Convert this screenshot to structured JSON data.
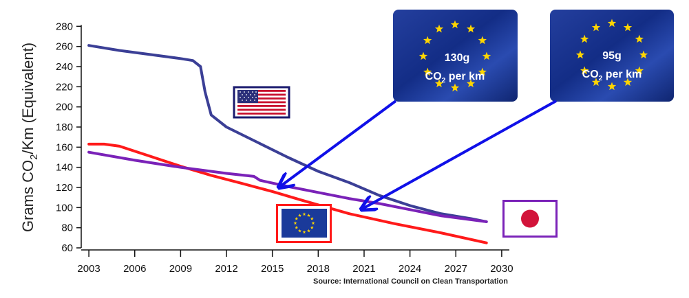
{
  "chart_data": {
    "type": "line",
    "ylabel_main": "Grams CO",
    "ylabel_sub": "2",
    "ylabel_rest": "/Km (Equivalent)",
    "source": "Source: International Council on Clean Transportation",
    "xlim": [
      2002.5,
      2030.5
    ],
    "ylim": [
      60,
      285
    ],
    "x_ticks": [
      "2003",
      "2006",
      "2009",
      "2012",
      "2015",
      "2018",
      "2021",
      "2024",
      "2027",
      "2030"
    ],
    "y_ticks": [
      "60",
      "80",
      "100",
      "120",
      "140",
      "160",
      "180",
      "200",
      "220",
      "240",
      "260",
      "280"
    ],
    "grid": false,
    "series": [
      {
        "color": "#3b3f96",
        "x": [
          2003,
          2005,
          2007,
          2009,
          2009.8,
          2010.3,
          2010.6,
          2011,
          2012,
          2014,
          2016,
          2018,
          2020,
          2022,
          2024,
          2026,
          2028,
          2029
        ],
        "y": [
          261,
          256,
          252,
          248,
          246,
          240,
          215,
          192,
          180,
          165,
          150,
          136,
          125,
          112,
          102,
          94,
          89,
          86
        ]
      },
      {
        "color": "#ff1a1a",
        "x": [
          2003,
          2004,
          2005,
          2007,
          2009,
          2011,
          2013,
          2015,
          2017,
          2020,
          2023,
          2026,
          2029
        ],
        "y": [
          163,
          163,
          161,
          151,
          141,
          132,
          124,
          116,
          107,
          94,
          84,
          75,
          65
        ]
      },
      {
        "color": "#7a22b8",
        "x": [
          2003,
          2006,
          2009,
          2012,
          2013.8,
          2014.2,
          2016,
          2018,
          2020,
          2022,
          2024,
          2026,
          2029
        ],
        "y": [
          155,
          147,
          140,
          134,
          131,
          127,
          121,
          115,
          109,
          104,
          98,
          92,
          86
        ]
      }
    ]
  },
  "annotations": {
    "eu_130": {
      "value": "130g",
      "co": "CO",
      "sub": "2",
      "rest": " per km",
      "target_year": 2015,
      "target_value": 117
    },
    "eu_95": {
      "value": "95g",
      "co": "CO",
      "sub": "2",
      "rest": " per km",
      "target_year": 2020,
      "target_value": 95
    }
  },
  "flags": {
    "usa": {
      "name": "usa-flag"
    },
    "eu": {
      "name": "eu-flag",
      "frame_color": "#ff1a1a"
    },
    "japan": {
      "name": "japan-flag",
      "frame_color": "#7a22b8"
    }
  },
  "colors": {
    "arrow": "#1010e8",
    "eu_blue": "#1a3a9a",
    "star": "#ffd500"
  }
}
